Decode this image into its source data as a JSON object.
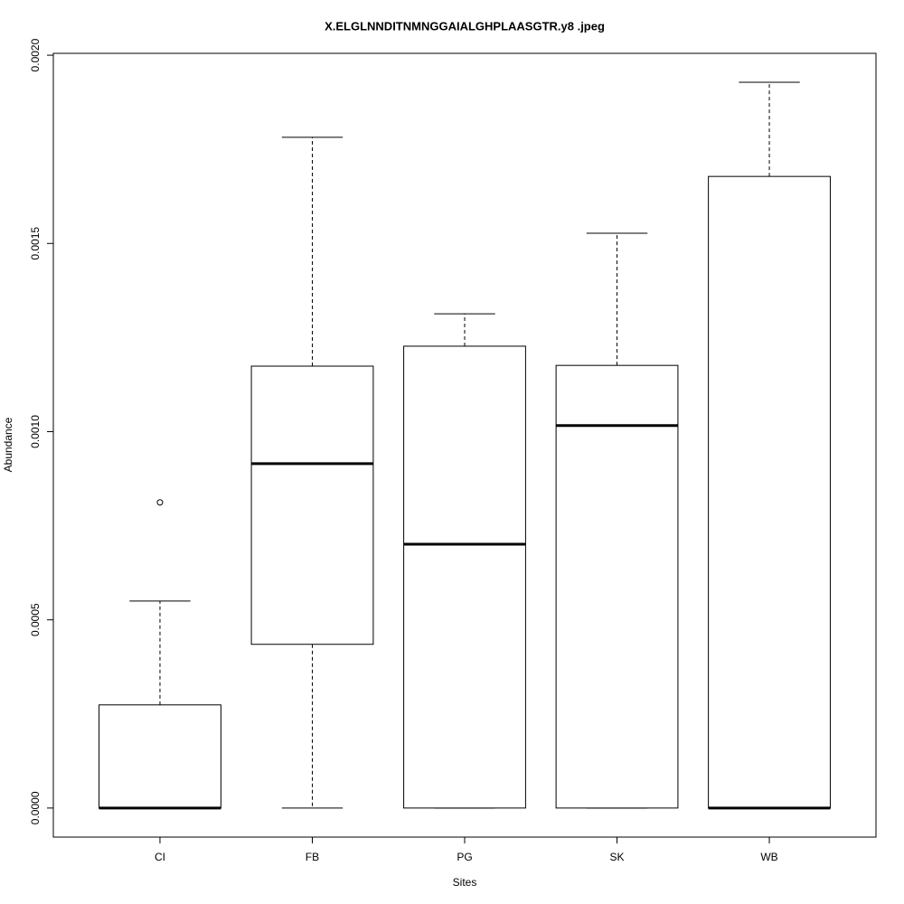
{
  "chart_data": {
    "type": "box",
    "title": "X.ELGLNNDITNMNGGAIALGHPLAASGTR.y8 .jpeg",
    "xlabel": "Sites",
    "ylabel": "Abundance",
    "categories": [
      "CI",
      "FB",
      "PG",
      "SK",
      "WB"
    ],
    "boxes": [
      {
        "min": 0,
        "q1": 0,
        "median": 0,
        "q3": 0.000274,
        "max": 0.00055,
        "outliers": [
          0.000812
        ]
      },
      {
        "min": 0,
        "q1": 0.000435,
        "median": 0.000915,
        "q3": 0.001174,
        "max": 0.001782
      },
      {
        "min": 0,
        "q1": 0,
        "median": 0.000701,
        "q3": 0.001227,
        "max": 0.001313
      },
      {
        "min": 0,
        "q1": 0,
        "median": 0.001016,
        "q3": 0.001176,
        "max": 0.001527
      },
      {
        "min": 0,
        "q1": 0,
        "median": 0,
        "q3": 0.001678,
        "max": 0.001928
      }
    ],
    "ylim": [
      -7.72e-05,
      0.002005
    ],
    "yticks": [
      {
        "value": 0,
        "label": "0.0000"
      },
      {
        "value": 0.0005,
        "label": "0.0005"
      },
      {
        "value": 0.001,
        "label": "0.0010"
      },
      {
        "value": 0.0015,
        "label": "0.0015"
      },
      {
        "value": 0.002,
        "label": "0.0020"
      }
    ],
    "color": "#000000"
  }
}
